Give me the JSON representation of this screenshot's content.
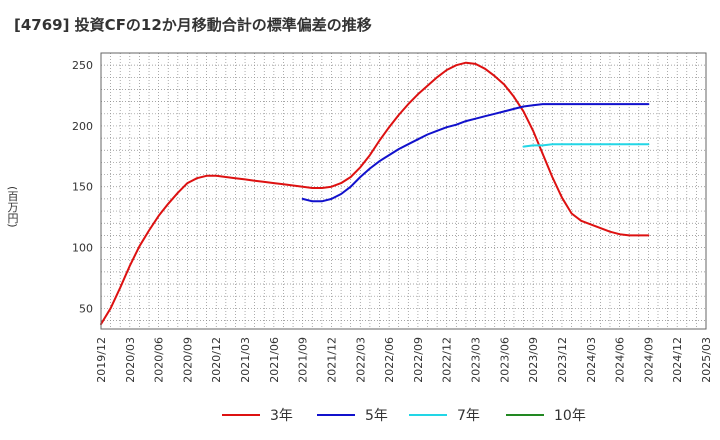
{
  "title": "[4769]  投資CFの12か月移動合計の標準偏差の推移",
  "chart_data": {
    "type": "line",
    "title": "[4769]  投資CFの12か月移動合計の標準偏差の推移",
    "xlabel": "",
    "ylabel": "(百万円)",
    "ylim": [
      33,
      260
    ],
    "yticks": [
      50,
      100,
      150,
      200,
      250
    ],
    "xlim": [
      "2019/12",
      "2025/03"
    ],
    "xticks": [
      "2019/12",
      "2020/03",
      "2020/06",
      "2020/09",
      "2020/12",
      "2021/03",
      "2021/06",
      "2021/09",
      "2021/12",
      "2022/03",
      "2022/06",
      "2022/09",
      "2022/12",
      "2023/03",
      "2023/06",
      "2023/09",
      "2023/12",
      "2024/03",
      "2024/06",
      "2024/09",
      "2024/12",
      "2025/03"
    ],
    "grid": true,
    "legend_position": "bottom",
    "series": [
      {
        "name": "3年",
        "color": "#dd1111",
        "x": [
          "2019/12",
          "2020/01",
          "2020/02",
          "2020/03",
          "2020/04",
          "2020/05",
          "2020/06",
          "2020/07",
          "2020/08",
          "2020/09",
          "2020/10",
          "2020/11",
          "2020/12",
          "2021/01",
          "2021/02",
          "2021/03",
          "2021/04",
          "2021/05",
          "2021/06",
          "2021/07",
          "2021/08",
          "2021/09",
          "2021/10",
          "2021/11",
          "2021/12",
          "2022/01",
          "2022/02",
          "2022/03",
          "2022/04",
          "2022/05",
          "2022/06",
          "2022/07",
          "2022/08",
          "2022/09",
          "2022/10",
          "2022/11",
          "2022/12",
          "2023/01",
          "2023/02",
          "2023/03",
          "2023/04",
          "2023/05",
          "2023/06",
          "2023/07",
          "2023/08",
          "2023/09",
          "2023/10",
          "2023/11",
          "2023/12",
          "2024/01",
          "2024/02",
          "2024/03",
          "2024/04",
          "2024/05",
          "2024/06",
          "2024/07",
          "2024/08",
          "2024/09"
        ],
        "values": [
          37,
          50,
          67,
          85,
          101,
          114,
          126,
          136,
          145,
          153,
          157,
          159,
          159,
          158,
          157,
          156,
          155,
          154,
          153,
          152,
          151,
          150,
          149,
          149,
          150,
          153,
          158,
          166,
          176,
          188,
          199,
          209,
          218,
          226,
          233,
          240,
          246,
          250,
          252,
          251,
          247,
          241,
          234,
          224,
          212,
          196,
          177,
          158,
          141,
          128,
          122,
          119,
          116,
          113,
          111,
          110,
          110,
          110
        ]
      },
      {
        "name": "5年",
        "color": "#1111cc",
        "x": [
          "2021/09",
          "2021/10",
          "2021/11",
          "2021/12",
          "2022/01",
          "2022/02",
          "2022/03",
          "2022/04",
          "2022/05",
          "2022/06",
          "2022/07",
          "2022/08",
          "2022/09",
          "2022/10",
          "2022/11",
          "2022/12",
          "2023/01",
          "2023/02",
          "2023/03",
          "2023/04",
          "2023/05",
          "2023/06",
          "2023/07",
          "2023/08",
          "2023/09",
          "2023/10",
          "2023/11",
          "2023/12",
          "2024/01",
          "2024/02",
          "2024/03",
          "2024/04",
          "2024/05",
          "2024/06",
          "2024/07",
          "2024/08",
          "2024/09"
        ],
        "values": [
          140,
          138,
          138,
          140,
          144,
          150,
          158,
          165,
          171,
          176,
          181,
          185,
          189,
          193,
          196,
          199,
          201,
          204,
          206,
          208,
          210,
          212,
          214,
          216,
          217,
          218,
          218,
          218,
          218,
          218,
          218,
          218,
          218,
          218,
          218,
          218,
          218
        ]
      },
      {
        "name": "7年",
        "color": "#22d6e6",
        "x": [
          "2023/08",
          "2023/09",
          "2023/10",
          "2023/11",
          "2023/12",
          "2024/01",
          "2024/02",
          "2024/03",
          "2024/04",
          "2024/05",
          "2024/06",
          "2024/07",
          "2024/08",
          "2024/09"
        ],
        "values": [
          183,
          184,
          184,
          185,
          185,
          185,
          185,
          185,
          185,
          185,
          185,
          185,
          185,
          185
        ]
      },
      {
        "name": "10年",
        "color": "#228822",
        "x": [],
        "values": []
      }
    ]
  }
}
